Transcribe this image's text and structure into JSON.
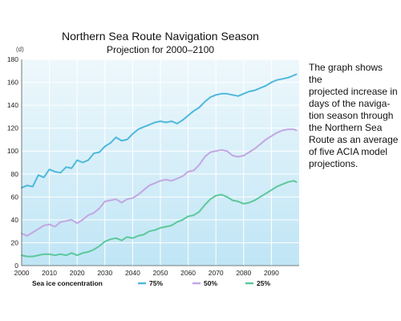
{
  "chart_data": {
    "type": "line",
    "title": "Northern Sea Route Navigation Season",
    "subtitle": "Projection for 2000–2100",
    "ylabel": "(d)",
    "xlim": [
      2000,
      2100
    ],
    "ylim": [
      0,
      180
    ],
    "x_ticks": [
      2000,
      2010,
      2020,
      2030,
      2040,
      2050,
      2060,
      2070,
      2080,
      2090
    ],
    "y_ticks": [
      0,
      20,
      40,
      60,
      80,
      100,
      120,
      140,
      160,
      180
    ],
    "legend_title": "Sea ice concentration",
    "legend_position": "bottom",
    "background_gradient": [
      "#eef8fc",
      "#bfe5f5"
    ],
    "series": [
      {
        "name": "75%",
        "color": "#4fb8dc",
        "x": [
          2000,
          2002,
          2004,
          2006,
          2008,
          2010,
          2012,
          2014,
          2016,
          2018,
          2020,
          2022,
          2024,
          2026,
          2028,
          2030,
          2032,
          2034,
          2036,
          2038,
          2040,
          2042,
          2044,
          2046,
          2048,
          2050,
          2052,
          2054,
          2056,
          2058,
          2060,
          2062,
          2064,
          2066,
          2068,
          2070,
          2072,
          2074,
          2076,
          2078,
          2080,
          2082,
          2084,
          2086,
          2088,
          2090,
          2092,
          2094,
          2096,
          2098,
          2099
        ],
        "y": [
          68,
          70,
          69,
          79,
          77,
          84,
          82,
          81,
          86,
          85,
          92,
          90,
          92,
          98,
          99,
          104,
          107,
          112,
          109,
          110,
          115,
          119,
          121,
          123,
          125,
          126,
          125,
          126,
          124,
          127,
          131,
          135,
          138,
          143,
          147,
          149,
          150,
          150,
          149,
          148,
          150,
          152,
          153,
          155,
          157,
          160,
          162,
          163,
          164,
          166,
          167
        ]
      },
      {
        "name": "50%",
        "color": "#c3a6e3",
        "x": [
          2000,
          2002,
          2004,
          2006,
          2008,
          2010,
          2012,
          2014,
          2016,
          2018,
          2020,
          2022,
          2024,
          2026,
          2028,
          2030,
          2032,
          2034,
          2036,
          2038,
          2040,
          2042,
          2044,
          2046,
          2048,
          2050,
          2052,
          2054,
          2056,
          2058,
          2060,
          2062,
          2064,
          2066,
          2068,
          2070,
          2072,
          2074,
          2076,
          2078,
          2080,
          2082,
          2084,
          2086,
          2088,
          2090,
          2092,
          2094,
          2096,
          2098,
          2099
        ],
        "y": [
          28,
          26,
          29,
          32,
          35,
          36,
          34,
          38,
          39,
          40,
          37,
          40,
          44,
          46,
          50,
          56,
          57,
          58,
          55,
          58,
          59,
          62,
          66,
          70,
          72,
          74,
          75,
          74,
          76,
          78,
          82,
          83,
          88,
          95,
          99,
          100,
          101,
          100,
          96,
          95,
          96,
          99,
          102,
          106,
          110,
          113,
          116,
          118,
          119,
          119,
          118
        ]
      },
      {
        "name": "25%",
        "color": "#5cc89a",
        "x": [
          2000,
          2002,
          2004,
          2006,
          2008,
          2010,
          2012,
          2014,
          2016,
          2018,
          2020,
          2022,
          2024,
          2026,
          2028,
          2030,
          2032,
          2034,
          2036,
          2038,
          2040,
          2042,
          2044,
          2046,
          2048,
          2050,
          2052,
          2054,
          2056,
          2058,
          2060,
          2062,
          2064,
          2066,
          2068,
          2070,
          2072,
          2074,
          2076,
          2078,
          2080,
          2082,
          2084,
          2086,
          2088,
          2090,
          2092,
          2094,
          2096,
          2098,
          2099
        ],
        "y": [
          9,
          8,
          8,
          9,
          10,
          10,
          9,
          10,
          9,
          11,
          9,
          11,
          12,
          14,
          17,
          21,
          23,
          24,
          22,
          25,
          24,
          26,
          27,
          30,
          31,
          33,
          34,
          35,
          38,
          40,
          43,
          44,
          47,
          53,
          58,
          61,
          62,
          60,
          57,
          56,
          54,
          55,
          57,
          60,
          63,
          66,
          69,
          71,
          73,
          74,
          73
        ]
      }
    ]
  },
  "caption": [
    "The graph shows the",
    "projected increase in",
    "days of the naviga-",
    "tion season through",
    "the Northern Sea",
    "Route as an average",
    "of five ACIA model",
    "projections."
  ]
}
